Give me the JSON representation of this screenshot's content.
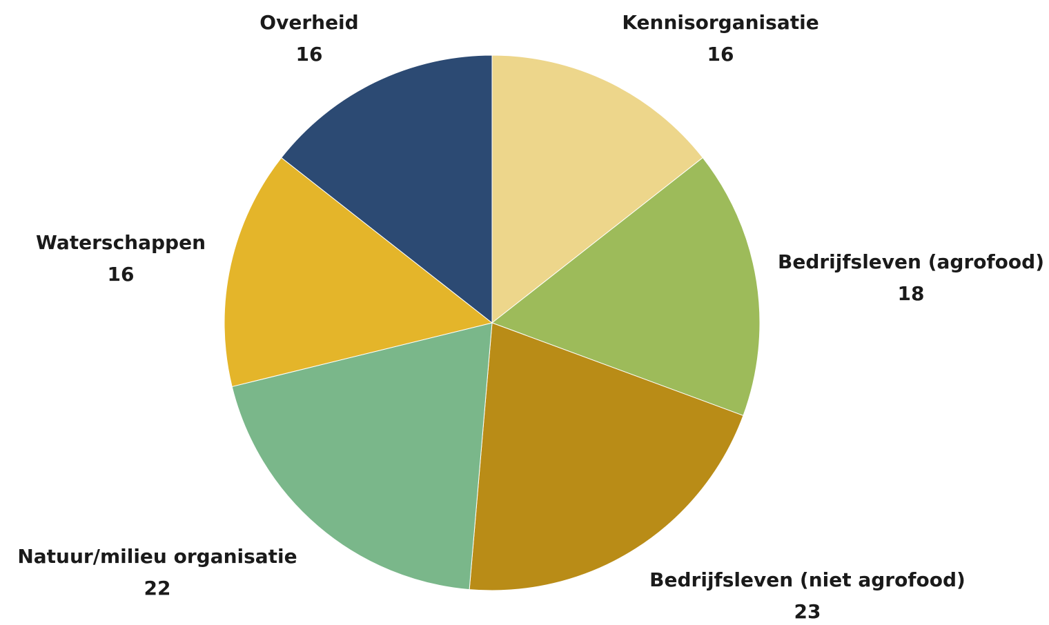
{
  "chart_data": {
    "type": "pie",
    "title": "",
    "slices": [
      {
        "label": "Kennisorganisatie",
        "value": 16,
        "color": "#EDD68B"
      },
      {
        "label": "Bedrijfsleven (agrofood)",
        "value": 18,
        "color": "#9DBB5A"
      },
      {
        "label": "Bedrijfsleven (niet agrofood)",
        "value": 23,
        "color": "#B98C17"
      },
      {
        "label": "Natuur/milieu organisatie",
        "value": 22,
        "color": "#7AB78A"
      },
      {
        "label": "Waterschappen",
        "value": 16,
        "color": "#E4B52A"
      },
      {
        "label": "Overheid",
        "value": 16,
        "color": "#2C4A73"
      }
    ],
    "start": "12 o'clock",
    "direction": "clockwise",
    "legend": "none",
    "labels": "outside, name above value"
  }
}
